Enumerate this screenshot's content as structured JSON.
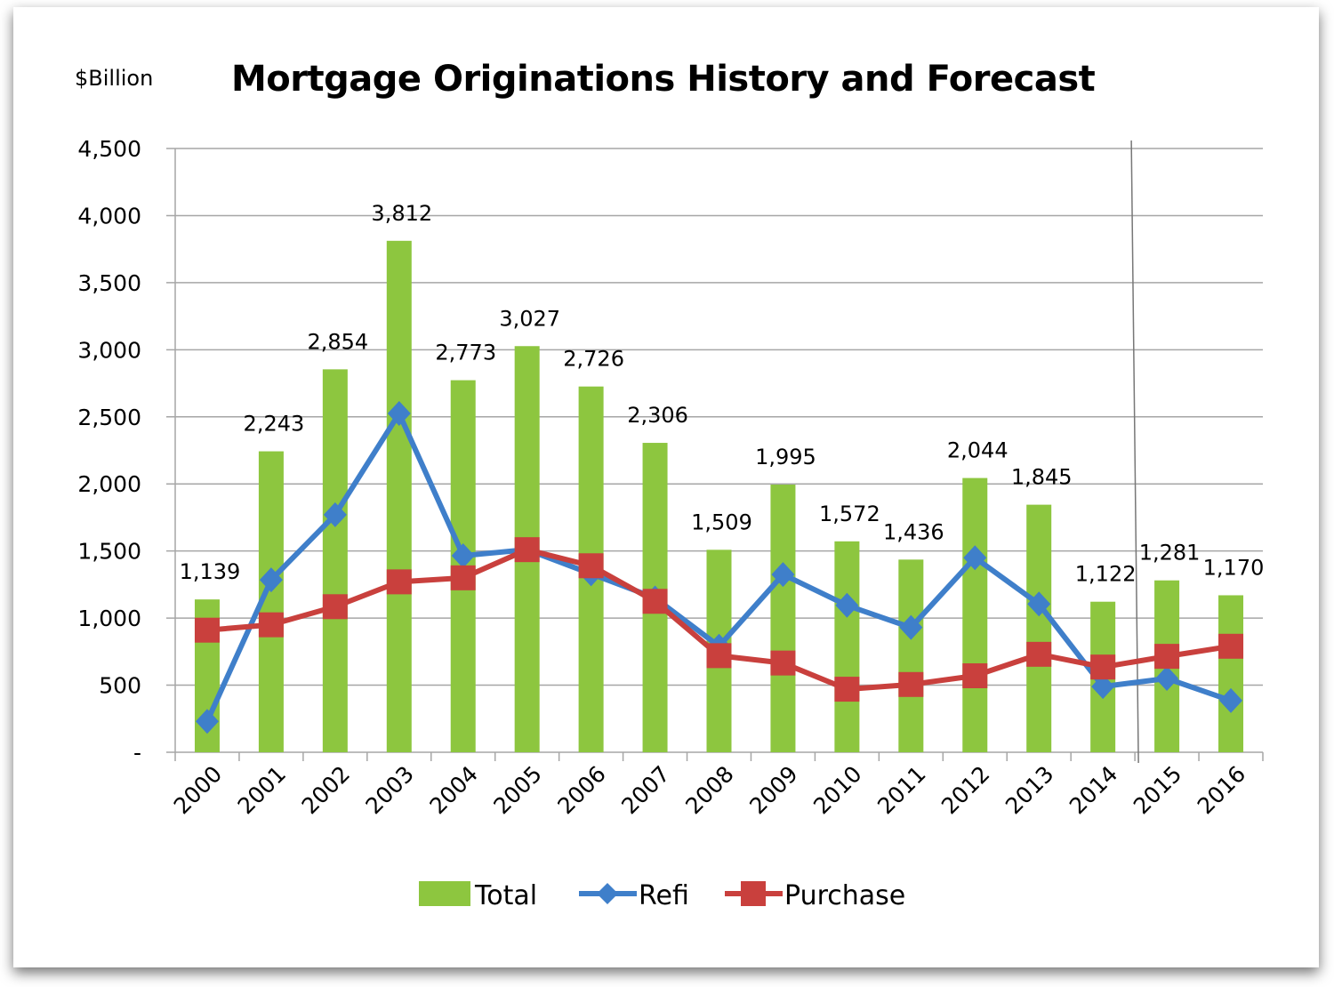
{
  "chart_data": {
    "type": "bar+line",
    "title": "Mortgage Originations History and Forecast",
    "ylabel": "$Billion",
    "xlabel": "",
    "ylim": [
      0,
      4500
    ],
    "yticks": [
      0,
      500,
      1000,
      1500,
      2000,
      2500,
      3000,
      3500,
      4000,
      4500
    ],
    "ytick_labels": [
      "-",
      "500",
      "1,000",
      "1,500",
      "2,000",
      "2,500",
      "3,000",
      "3,500",
      "4,000",
      "4,500"
    ],
    "grid": "horizontal",
    "legend": "bottom",
    "forecast_divider_after": "2014",
    "categories": [
      "2000",
      "2001",
      "2002",
      "2003",
      "2004",
      "2005",
      "2006",
      "2007",
      "2008",
      "2009",
      "2010",
      "2011",
      "2012",
      "2013",
      "2014",
      "2015",
      "2016"
    ],
    "series": [
      {
        "name": "Total",
        "type": "bar",
        "color": "#8dc63f",
        "values": [
          1139,
          2243,
          2854,
          3812,
          2773,
          3027,
          2726,
          2306,
          1509,
          1995,
          1572,
          1436,
          2044,
          1845,
          1122,
          1281,
          1170
        ],
        "data_labels": [
          "1,139",
          "2,243",
          "2,854",
          "3,812",
          "2,773",
          "3,027",
          "2,726",
          "2,306",
          "1,509",
          "1,995",
          "1,572",
          "1,436",
          "2,044",
          "1,845",
          "1,122",
          "1,281",
          "1,170"
        ]
      },
      {
        "name": "Refi",
        "type": "line",
        "marker": "diamond",
        "color": "#3f7fca",
        "values": [
          230,
          1285,
          1770,
          2525,
          1465,
          1510,
          1330,
          1150,
          790,
          1325,
          1095,
          930,
          1450,
          1105,
          490,
          550,
          385
        ]
      },
      {
        "name": "Purchase",
        "type": "line",
        "marker": "square",
        "color": "#c9403d",
        "values": [
          910,
          950,
          1085,
          1270,
          1300,
          1510,
          1390,
          1125,
          720,
          665,
          470,
          505,
          570,
          730,
          635,
          715,
          790
        ]
      }
    ]
  }
}
